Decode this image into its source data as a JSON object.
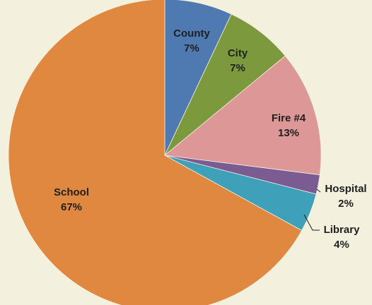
{
  "chart_data": {
    "type": "pie",
    "title": "",
    "start_angle_deg": 0,
    "direction": "clockwise",
    "slices": [
      {
        "label": "County",
        "value": 7,
        "value_label": "7%",
        "color": "#4f79b1"
      },
      {
        "label": "City",
        "value": 7,
        "value_label": "7%",
        "color": "#7c9a3d"
      },
      {
        "label": "Fire #4",
        "value": 13,
        "value_label": "13%",
        "color": "#dc9796"
      },
      {
        "label": "Hospital",
        "value": 2,
        "value_label": "2%",
        "color": "#7a5b92"
      },
      {
        "label": "Library",
        "value": 4,
        "value_label": "4%",
        "color": "#3fa0b9"
      },
      {
        "label": "School",
        "value": 67,
        "value_label": "67%",
        "color": "#e0883f"
      }
    ],
    "legend": "none",
    "background_color": "#f3f0de"
  }
}
